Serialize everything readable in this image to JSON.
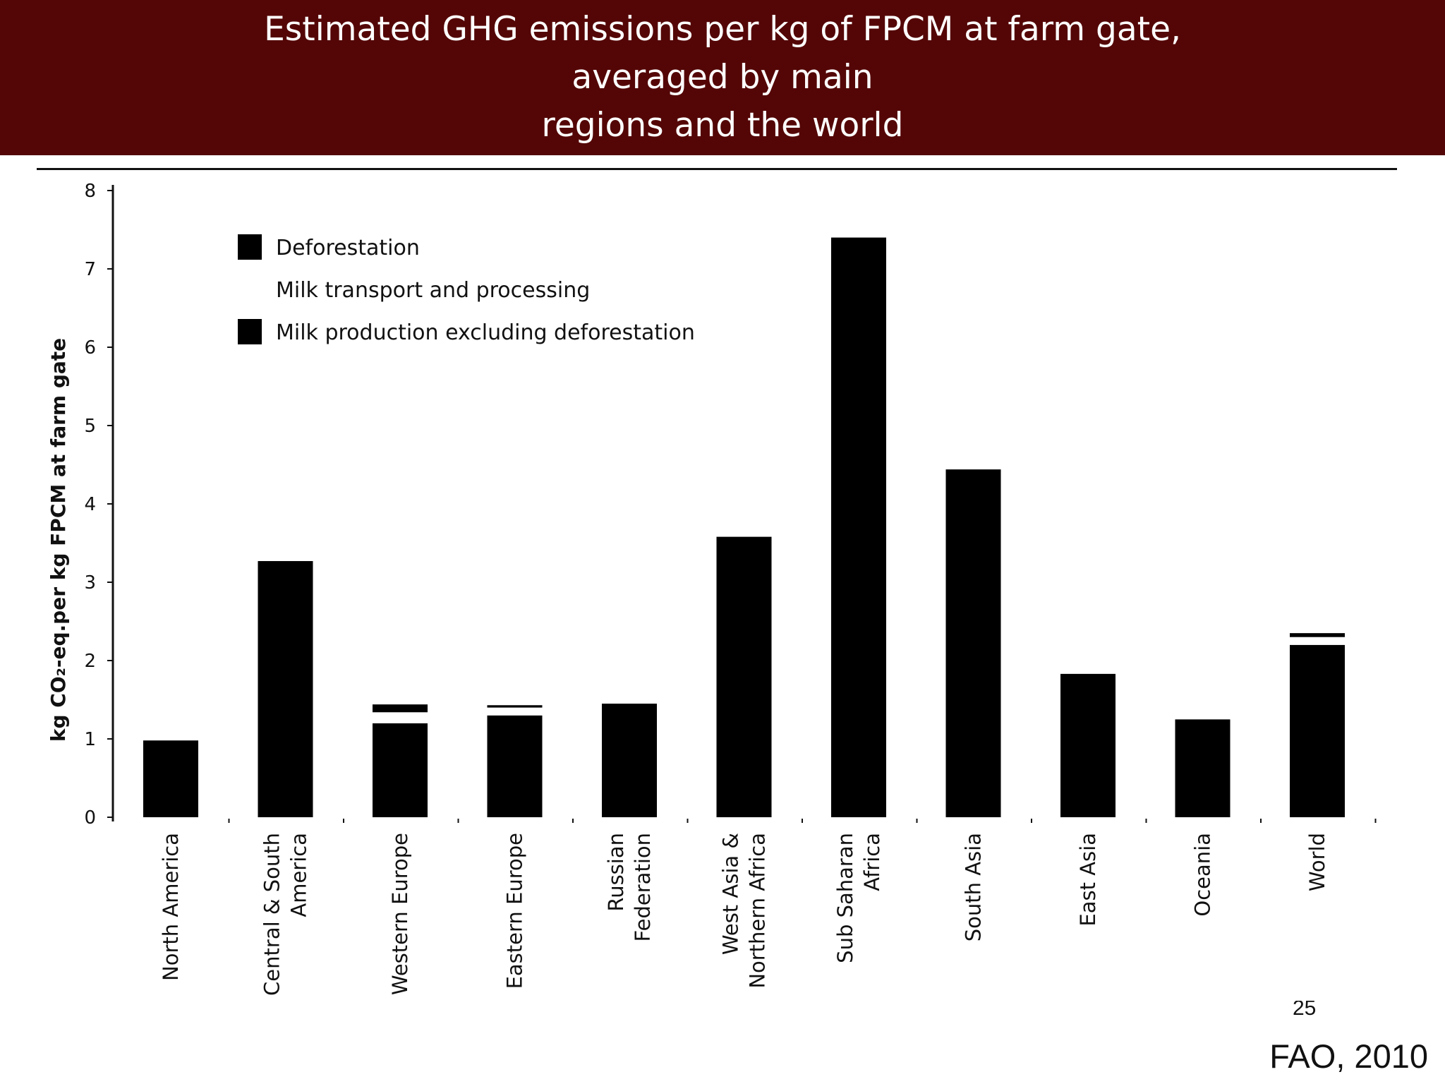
{
  "slide": {
    "title_lines": [
      "Estimated GHG emissions per kg of FPCM at farm gate,",
      "averaged by main",
      "regions and the world"
    ],
    "source": "FAO, 2010",
    "page_number": "25"
  },
  "chart_data": {
    "type": "bar",
    "stacked": true,
    "ylabel": "kg CO₂-eq.per kg FPCM at farm gate",
    "ylim": [
      0,
      8
    ],
    "yticks": [
      0,
      1,
      2,
      3,
      4,
      5,
      6,
      7,
      8
    ],
    "categories": [
      [
        "North America"
      ],
      [
        "Central & South",
        "America"
      ],
      [
        "Western Europe"
      ],
      [
        "Eastern Europe"
      ],
      [
        "Russian",
        "Federation"
      ],
      [
        "West Asia &",
        "Northern Africa"
      ],
      [
        "Sub Saharan",
        "Africa"
      ],
      [
        "South Asia"
      ],
      [
        "East Asia"
      ],
      [
        "Oceania"
      ],
      [
        "World"
      ]
    ],
    "series": [
      {
        "name": "Milk production excluding deforestation",
        "color": "#000000",
        "values": [
          0.98,
          3.27,
          1.2,
          1.3,
          1.45,
          3.58,
          7.4,
          4.44,
          1.83,
          1.25,
          2.2
        ]
      },
      {
        "name": "Milk transport and processing",
        "color": "#ffffff",
        "values": [
          0.0,
          0.0,
          0.14,
          0.1,
          0.0,
          0.0,
          0.0,
          0.0,
          0.0,
          0.05,
          0.1
        ]
      },
      {
        "name": "Deforestation",
        "color": "#000000",
        "values": [
          0.0,
          0.0,
          0.1,
          0.03,
          0.0,
          0.0,
          0.0,
          0.0,
          0.0,
          0.0,
          0.05
        ]
      }
    ],
    "legend_order": [
      "Deforestation",
      "Milk transport and processing",
      "Milk production excluding deforestation"
    ],
    "legend_position": "top-left",
    "grid": false
  }
}
